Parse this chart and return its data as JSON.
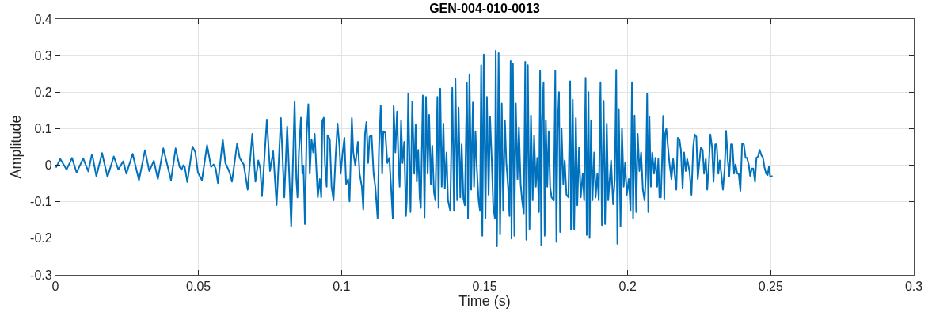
{
  "chart_data": {
    "type": "line",
    "title": "GEN-004-010-0013",
    "xlabel": "Time (s)",
    "ylabel": "Amplitude",
    "xlim": [
      0,
      0.3
    ],
    "xticks": [
      0,
      0.05,
      0.1,
      0.15,
      0.2,
      0.25,
      0.3
    ],
    "ylim": [
      -0.3,
      0.4
    ],
    "yticks": [
      -0.3,
      -0.2,
      -0.1,
      0,
      0.1,
      0.2,
      0.3,
      0.4
    ],
    "grid": true,
    "line_style": "solid",
    "x": [
      0.0003,
      0.0017,
      0.0039,
      0.0058,
      0.0074,
      0.0097,
      0.0115,
      0.0127,
      0.0131,
      0.0143,
      0.0163,
      0.0182,
      0.0204,
      0.022,
      0.0237,
      0.0248,
      0.027,
      0.0292,
      0.0313,
      0.0328,
      0.0344,
      0.0358,
      0.0377,
      0.0404,
      0.042,
      0.0434,
      0.0441,
      0.0447,
      0.0452,
      0.0461,
      0.0479,
      0.0489,
      0.0498,
      0.0512,
      0.053,
      0.0544,
      0.0553,
      0.056,
      0.0568,
      0.0585,
      0.0594,
      0.0603,
      0.061,
      0.0617,
      0.0635,
      0.0644,
      0.0652,
      0.0658,
      0.0672,
      0.0688,
      0.0699,
      0.0709,
      0.0716,
      0.0722,
      0.0739,
      0.075,
      0.0761,
      0.0773,
      0.0788,
      0.08,
      0.081,
      0.0817,
      0.0824,
      0.0836,
      0.0842,
      0.0846,
      0.0851,
      0.0858,
      0.0863,
      0.0867,
      0.0872,
      0.0878,
      0.0884,
      0.0889,
      0.0895,
      0.0901,
      0.0906,
      0.0911,
      0.0917,
      0.0924,
      0.0929,
      0.0933,
      0.0938,
      0.0942,
      0.0948,
      0.0951,
      0.0959,
      0.0965,
      0.0972,
      0.0979,
      0.0986,
      0.0993,
      0.0997,
      0.1003,
      0.101,
      0.1016,
      0.1023,
      0.1028,
      0.1036,
      0.1041,
      0.1048,
      0.1057,
      0.1063,
      0.1071,
      0.1076,
      0.1082,
      0.1087,
      0.1093,
      0.1098,
      0.1105,
      0.1112,
      0.1118,
      0.1126,
      0.1131,
      0.1137,
      0.1142,
      0.1146,
      0.1153,
      0.116,
      0.1167,
      0.1173,
      0.1179,
      0.1182,
      0.1188,
      0.1194,
      0.1199,
      0.1203,
      0.1208,
      0.1213,
      0.1219,
      0.1225,
      0.1228,
      0.1233,
      0.1237,
      0.1241,
      0.1247,
      0.1254,
      0.1259,
      0.1263,
      0.1268,
      0.1273,
      0.1277,
      0.1284,
      0.129,
      0.1295,
      0.1301,
      0.1306,
      0.1312,
      0.1317,
      0.1323,
      0.1328,
      0.1335,
      0.1339,
      0.1345,
      0.135,
      0.1356,
      0.1361,
      0.1367,
      0.1372,
      0.138,
      0.1387,
      0.1393,
      0.1398,
      0.1404,
      0.1409,
      0.1415,
      0.142,
      0.1426,
      0.1431,
      0.1438,
      0.1442,
      0.1447,
      0.1453,
      0.1459,
      0.1463,
      0.1468,
      0.1473,
      0.1479,
      0.1484,
      0.1488,
      0.1492,
      0.1497,
      0.1503,
      0.1508,
      0.1514,
      0.1519,
      0.1525,
      0.153,
      0.1536,
      0.1539,
      0.1543,
      0.1549,
      0.1554,
      0.156,
      0.1565,
      0.1571,
      0.1576,
      0.1582,
      0.1587,
      0.1591,
      0.1594,
      0.1599,
      0.1604,
      0.1609,
      0.1615,
      0.162,
      0.1626,
      0.1631,
      0.1637,
      0.1642,
      0.1646,
      0.1651,
      0.1657,
      0.1662,
      0.1668,
      0.1673,
      0.1679,
      0.1684,
      0.169,
      0.1694,
      0.1698,
      0.1701,
      0.1706,
      0.171,
      0.1714,
      0.1719,
      0.1724,
      0.1729,
      0.1734,
      0.1742,
      0.1747,
      0.1751,
      0.1755,
      0.176,
      0.1764,
      0.1769,
      0.1775,
      0.178,
      0.1786,
      0.1793,
      0.1799,
      0.1802,
      0.1808,
      0.1813,
      0.1819,
      0.1824,
      0.183,
      0.1836,
      0.1843,
      0.1848,
      0.1853,
      0.1857,
      0.1863,
      0.1867,
      0.1872,
      0.1877,
      0.1883,
      0.1888,
      0.1894,
      0.1899,
      0.1905,
      0.191,
      0.1916,
      0.1921,
      0.1927,
      0.1932,
      0.1942,
      0.1949,
      0.1955,
      0.196,
      0.1964,
      0.1969,
      0.1975,
      0.198,
      0.1986,
      0.1991,
      0.1997,
      0.2004,
      0.201,
      0.2015,
      0.2019,
      0.2024,
      0.203,
      0.2035,
      0.2041,
      0.2047,
      0.2053,
      0.2059,
      0.2064,
      0.2068,
      0.2072,
      0.2076,
      0.2081,
      0.2086,
      0.2092,
      0.2097,
      0.2103,
      0.2107,
      0.2111,
      0.2116,
      0.212,
      0.2124,
      0.2128,
      0.2131,
      0.2135,
      0.2141,
      0.2146,
      0.2153,
      0.2159,
      0.2164,
      0.217,
      0.2175,
      0.2181,
      0.2186,
      0.2192,
      0.2197,
      0.2203,
      0.2208,
      0.2216,
      0.2223,
      0.2229,
      0.2234,
      0.224,
      0.2245,
      0.2251,
      0.2256,
      0.2262,
      0.2267,
      0.2273,
      0.2278,
      0.2284,
      0.2289,
      0.2295,
      0.23,
      0.2306,
      0.2311,
      0.2317,
      0.2322,
      0.2328,
      0.2333,
      0.2339,
      0.2344,
      0.235,
      0.2355,
      0.2361,
      0.2366,
      0.2372,
      0.2377,
      0.2383,
      0.2388,
      0.2394,
      0.24,
      0.2406,
      0.2412,
      0.2417,
      0.2423,
      0.2428,
      0.2434,
      0.2439,
      0.2445,
      0.245,
      0.2456,
      0.2461,
      0.2467,
      0.2473,
      0.2478,
      0.2484,
      0.2489,
      0.2494,
      0.2498,
      0.2504
    ],
    "series": [
      {
        "color": "#0072bd",
        "values": [
          -0.005,
          0.017,
          -0.012,
          0.02,
          -0.02,
          0.019,
          -0.017,
          0.028,
          0.02,
          -0.03,
          0.033,
          -0.032,
          0.024,
          -0.012,
          0.011,
          -0.023,
          0.031,
          -0.041,
          0.041,
          -0.016,
          0.012,
          -0.038,
          0.046,
          -0.041,
          0.046,
          -0.005,
          -0.012,
          0,
          -0.005,
          -0.046,
          0.051,
          0.035,
          -0.02,
          -0.041,
          0.055,
          -0.005,
          0.002,
          -0.009,
          -0.049,
          0.07,
          0.006,
          -0.009,
          -0.023,
          -0.045,
          0.059,
          0.02,
          0.009,
          0.002,
          -0.067,
          0.086,
          -0.045,
          0.013,
          -0.009,
          -0.085,
          0.125,
          -0.016,
          0.038,
          -0.109,
          0.129,
          -0.088,
          0.106,
          -0.023,
          -0.167,
          0.174,
          -0.038,
          -0.088,
          0.035,
          0.13,
          -0.023,
          -0.001,
          -0.161,
          0.086,
          0.167,
          -0.023,
          0.071,
          0.035,
          0.086,
          0.006,
          -0.088,
          -0.038,
          -0.088,
          0.122,
          0.13,
          0.006,
          -0.059,
          0.082,
          0.071,
          -0.059,
          -0.096,
          0.02,
          0.114,
          0.049,
          -0.023,
          0.028,
          0.075,
          -0.052,
          -0.038,
          -0.099,
          0.129,
          0.035,
          -0.001,
          0.064,
          -0.023,
          -0.059,
          -0.121,
          0.086,
          0.118,
          0.006,
          0.078,
          0.082,
          -0.023,
          -0.059,
          -0.146,
          0.049,
          0.163,
          -0.023,
          0.093,
          0.089,
          0.006,
          0.02,
          -0.059,
          -0.145,
          0.162,
          0.035,
          0.147,
          0.006,
          -0.059,
          0.122,
          0.006,
          0.064,
          -0.139,
          -0.096,
          0.196,
          0.035,
          -0.128,
          0.174,
          -0.023,
          0.111,
          -0.045,
          0.042,
          -0.088,
          -0.117,
          0.191,
          -0.143,
          0.187,
          -0.023,
          0.138,
          -0.052,
          0.053,
          -0.074,
          -0.096,
          0.187,
          -0.117,
          0.21,
          -0.059,
          0.114,
          -0.063,
          0.035,
          -0.096,
          -0.125,
          0.212,
          -0.125,
          0.236,
          -0.096,
          0.158,
          -0.088,
          0.057,
          -0.092,
          -0.11,
          0.225,
          -0.146,
          0.249,
          -0.067,
          0.172,
          -0.059,
          0.093,
          -0.009,
          -0.096,
          -0.125,
          0.274,
          -0.193,
          0.303,
          -0.146,
          0.187,
          -0.081,
          0.133,
          0.013,
          -0.11,
          -0.146,
          0.314,
          -0.222,
          0.307,
          -0.19,
          0.169,
          -0.125,
          0.122,
          0.006,
          -0.059,
          -0.139,
          0.285,
          -0.201,
          0.278,
          -0.193,
          0.169,
          -0.038,
          0.104,
          -0.052,
          -0.096,
          -0.132,
          0.283,
          -0.204,
          0.274,
          -0.175,
          0.136,
          -0.096,
          0.082,
          -0.059,
          0.02,
          -0.128,
          0.258,
          -0.219,
          0.122,
          0.227,
          -0.193,
          0.122,
          -0.059,
          0.093,
          -0.059,
          -0.088,
          -0.096,
          0.258,
          -0.21,
          0.1,
          0.2,
          -0.183,
          0.1,
          -0.052,
          0.013,
          -0.081,
          -0.088,
          0.23,
          -0.177,
          0.18,
          -0.175,
          0.129,
          -0.11,
          0.049,
          -0.088,
          -0.023,
          -0.096,
          0.239,
          -0.191,
          0.2,
          -0.199,
          0.122,
          -0.096,
          0.035,
          -0.088,
          -0.023,
          -0.096,
          0.227,
          -0.164,
          0.176,
          -0.161,
          0.114,
          -0.096,
          0.013,
          -0.107,
          -0.038,
          0.261,
          -0.215,
          0.154,
          -0.168,
          0.1,
          -0.059,
          0.006,
          -0.081,
          -0.038,
          -0.125,
          0.227,
          -0.146,
          0.136,
          -0.128,
          0.086,
          -0.016,
          0.035,
          -0.067,
          -0.096,
          -0.023,
          0.196,
          -0.128,
          0.133,
          -0.059,
          0.035,
          -0.023,
          0.02,
          -0.059,
          0.017,
          -0.088,
          -0.088,
          0.006,
          0.135,
          -0.092,
          0.086,
          0.1,
          0.049,
          0.006,
          -0.038,
          0.017,
          -0.023,
          -0.067,
          0.075,
          0.071,
          0.042,
          -0.063,
          0.035,
          -0.016,
          0.017,
          -0.016,
          -0.081,
          0.049,
          0.084,
          0.078,
          -0.038,
          0.013,
          0.049,
          0.042,
          -0.023,
          0.017,
          -0.067,
          0.006,
          0.084,
          0.049,
          -0.045,
          0.057,
          0.057,
          -0.023,
          0.013,
          -0.03,
          -0.067,
          -0.009,
          0.094,
          0.013,
          -0.03,
          0.057,
          0.057,
          -0.023,
          0.002,
          -0.023,
          -0.023,
          -0.07,
          0.06,
          0.057,
          0.02,
          0.02,
          0.002,
          -0.029,
          -0.009,
          -0.009,
          -0.045,
          0.02,
          0.024,
          0.042,
          0.028,
          0.02,
          -0.005,
          -0.023,
          -0.027,
          -0.003,
          -0.032,
          -0.03
        ]
      }
    ]
  }
}
